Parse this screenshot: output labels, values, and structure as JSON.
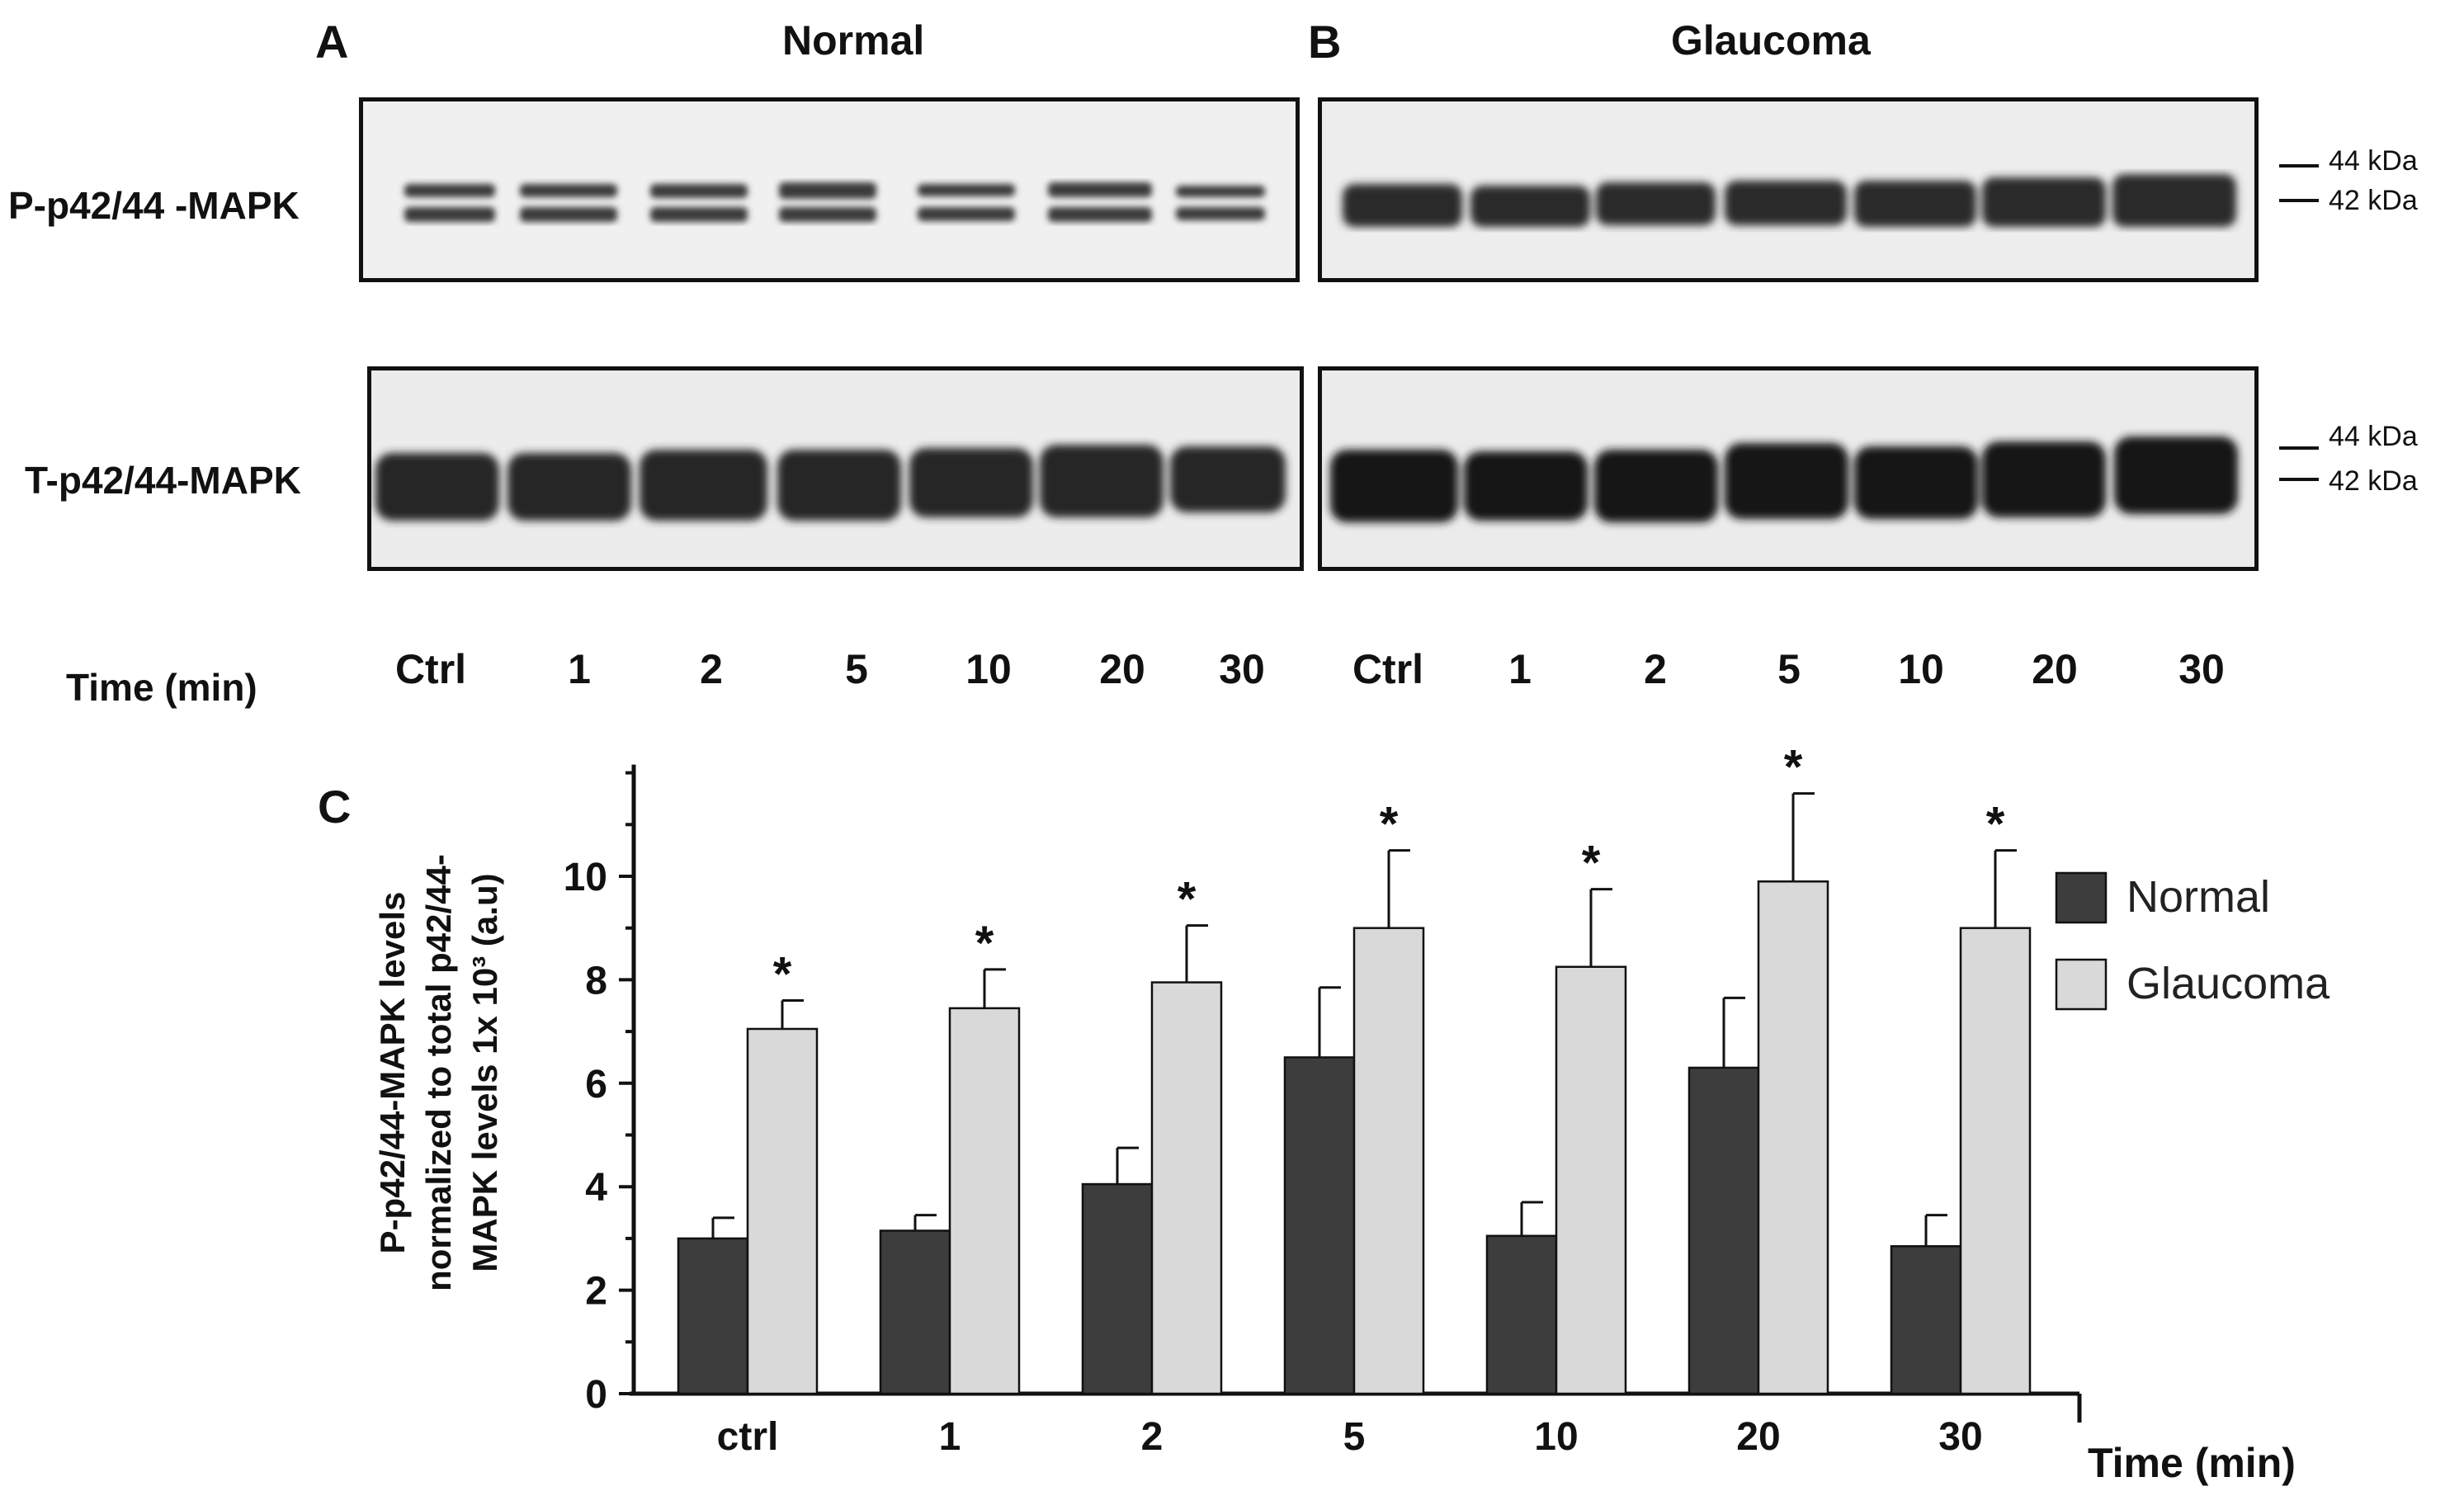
{
  "panels": {
    "a_letter": "A",
    "b_letter": "B",
    "c_letter": "C",
    "normal_title": "Normal",
    "glaucoma_title": "Glaucoma"
  },
  "blots": {
    "row_labels": [
      "P-p42/44 -MAPK",
      "T-p42/44-MAPK"
    ],
    "kda_labels": [
      "44 kDa",
      "42 kDa"
    ],
    "time_label": "Time (min)",
    "normal_lanes": [
      "Ctrl",
      "1",
      "2",
      "5",
      "10",
      "20",
      "30"
    ],
    "glaucoma_lanes": [
      "Ctrl",
      "1",
      "2",
      "5",
      "10",
      "20",
      "30"
    ]
  },
  "chart_data": {
    "type": "bar",
    "categories": [
      "ctrl",
      "1",
      "2",
      "5",
      "10",
      "20",
      "30"
    ],
    "series": [
      {
        "name": "Normal",
        "color": "#3d3d3d",
        "values": [
          3.0,
          3.15,
          4.05,
          6.5,
          3.05,
          6.3,
          2.85
        ],
        "errors": [
          0.4,
          0.3,
          0.7,
          1.35,
          0.65,
          1.35,
          0.6
        ]
      },
      {
        "name": "Glaucoma",
        "color": "#d9d9d9",
        "values": [
          7.05,
          7.45,
          7.95,
          9.0,
          8.25,
          9.9,
          9.0
        ],
        "errors": [
          0.55,
          0.75,
          1.1,
          1.5,
          1.5,
          1.7,
          1.5
        ]
      }
    ],
    "significance": [
      "*",
      "*",
      "*",
      "*",
      "*",
      "*",
      "*"
    ],
    "ylabel_lines": [
      "P-p42/44-MAPK levels",
      "normalized to total p42/44-",
      "MAPK levels 1x 10³ (a.u)"
    ],
    "xlabel": "Time  (min)",
    "yticks": [
      0,
      2,
      4,
      6,
      8,
      10
    ],
    "ylim": [
      0,
      12
    ],
    "legend_position": "right"
  }
}
